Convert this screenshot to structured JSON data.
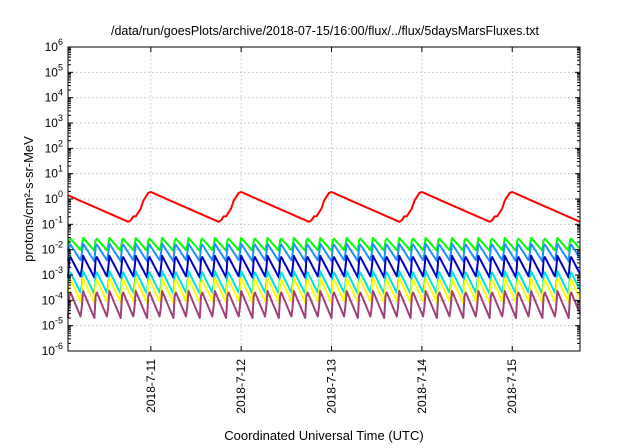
{
  "chart_data": {
    "type": "line",
    "title": "/data/run/goesPlots/archive/2018-07-15/16:00/flux/../flux/5daysMarsFluxes.txt",
    "xlabel": "Coordinated Universal Time (UTC)",
    "ylabel": "protons/cm²-s-sr-MeV",
    "yscale": "log",
    "ylim": [
      1e-06,
      1000000.0
    ],
    "y_ticks": [
      {
        "value": 1e-06,
        "base": "10",
        "exp": "-6"
      },
      {
        "value": 1e-05,
        "base": "10",
        "exp": "-5"
      },
      {
        "value": 0.0001,
        "base": "10",
        "exp": "-4"
      },
      {
        "value": 0.001,
        "base": "10",
        "exp": "-3"
      },
      {
        "value": 0.01,
        "base": "10",
        "exp": "-2"
      },
      {
        "value": 0.1,
        "base": "10",
        "exp": "-1"
      },
      {
        "value": 1,
        "base": "10",
        "exp": "0"
      },
      {
        "value": 10,
        "base": "10",
        "exp": "1"
      },
      {
        "value": 100,
        "base": "10",
        "exp": "2"
      },
      {
        "value": 1000,
        "base": "10",
        "exp": "3"
      },
      {
        "value": 10000,
        "base": "10",
        "exp": "4"
      },
      {
        "value": 100000,
        "base": "10",
        "exp": "5"
      },
      {
        "value": 1000000,
        "base": "10",
        "exp": "6"
      }
    ],
    "xlim": [
      "2018-07-10T02:00",
      "2018-07-15T18:00"
    ],
    "x_ticks": [
      {
        "value": "2018-07-11T00:00",
        "label": "2018-7-11"
      },
      {
        "value": "2018-07-12T00:00",
        "label": "2018-7-12"
      },
      {
        "value": "2018-07-13T00:00",
        "label": "2018-7-13"
      },
      {
        "value": "2018-07-14T00:00",
        "label": "2018-7-14"
      },
      {
        "value": "2018-07-15T00:00",
        "label": "2018-7-15"
      }
    ],
    "grid": true,
    "sawtooth_period_hours": 3.5,
    "series": [
      {
        "color": "#ff0000",
        "top": 2,
        "bottom": 0.12
      },
      {
        "color": "#00ff00",
        "top": 0.03,
        "bottom": 0.009
      },
      {
        "color": "#1e90ff",
        "top": 0.018,
        "bottom": 0.0035
      },
      {
        "color": "#0000c0",
        "top": 0.006,
        "bottom": 0.0008
      },
      {
        "color": "#00e0e0",
        "top": 0.0015,
        "bottom": 0.00018
      },
      {
        "color": "#ffff00",
        "top": 0.0008,
        "bottom": 8e-05
      },
      {
        "color": "#a0407a",
        "top": 0.00025,
        "bottom": 2e-05
      }
    ]
  }
}
